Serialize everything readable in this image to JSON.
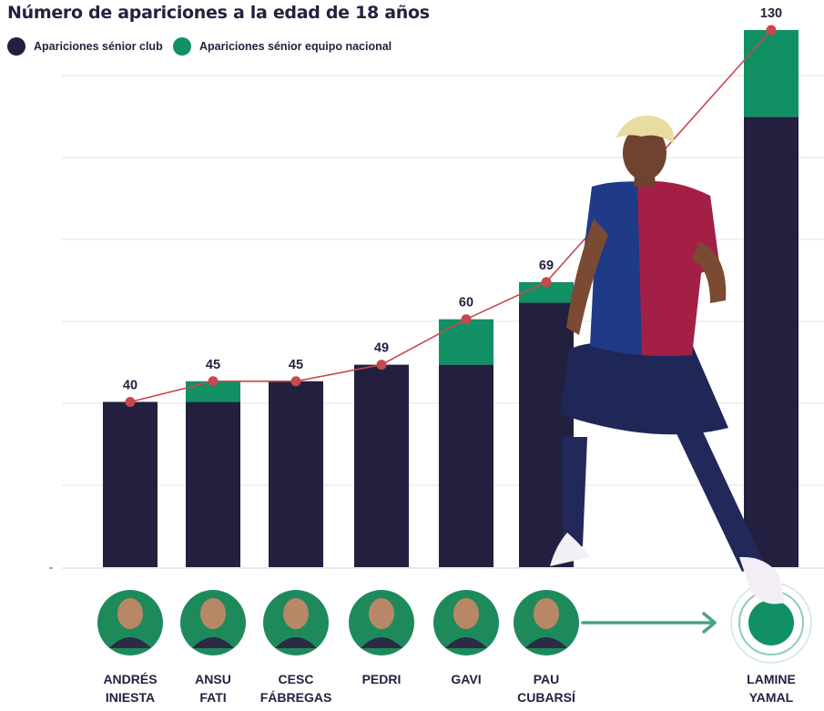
{
  "chart_data": {
    "type": "bar",
    "title": "Número de apariciones a la edad de 18 años",
    "categories": [
      "Andrés Iniesta",
      "Ansu Fati",
      "Cesc Fábregas",
      "Pedri",
      "Gavi",
      "Pau Cubarsí",
      "Lamine Yamal"
    ],
    "name_lines": [
      [
        "ANDRÉS",
        "INIESTA"
      ],
      [
        "ANSU",
        "FATI"
      ],
      [
        "CESC",
        "FÁBREGAS"
      ],
      [
        "PEDRI",
        ""
      ],
      [
        "GAVI",
        ""
      ],
      [
        "PAU",
        "CUBARSÍ"
      ],
      [
        "LAMINE",
        "YAMAL"
      ]
    ],
    "series": [
      {
        "name": "Apariciones sénior club",
        "values": [
          40,
          40,
          45,
          49,
          49,
          64,
          109
        ],
        "color": "#23203f"
      },
      {
        "name": "Apariciones sénior equipo nacional",
        "values": [
          0,
          5,
          0,
          0,
          11,
          5,
          21
        ],
        "color": "#119063"
      }
    ],
    "totals": [
      40,
      45,
      45,
      49,
      60,
      69,
      130
    ],
    "total_labels": [
      "40",
      "45",
      "45",
      "49",
      "60",
      "69",
      "130"
    ],
    "ylim": [
      0,
      130
    ],
    "grid": true,
    "legend_position": "top-left",
    "line_color": "#c8484f",
    "background": "#ffffff"
  }
}
